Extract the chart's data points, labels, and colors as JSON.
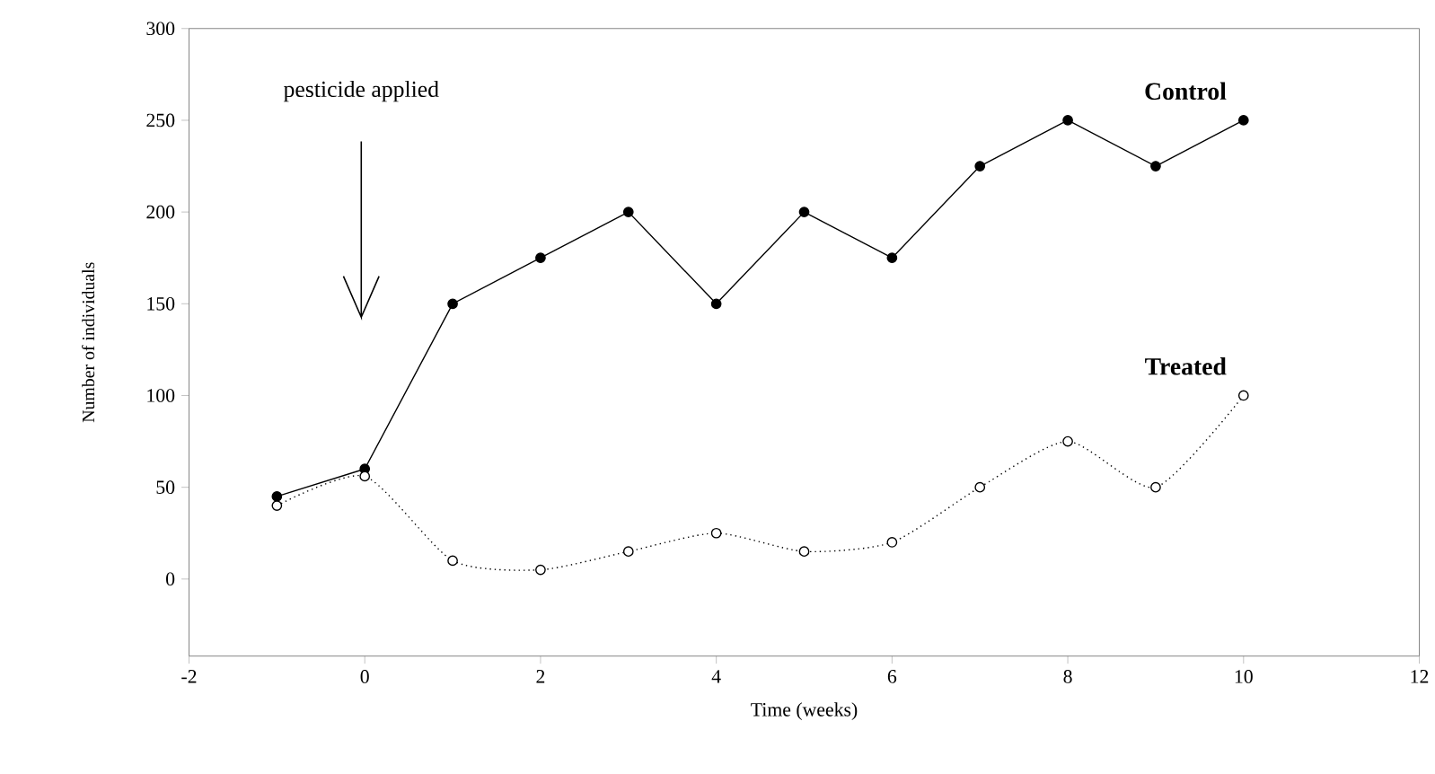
{
  "chart_data": {
    "type": "line",
    "xlabel": "Time (weeks)",
    "ylabel": "Number of individuals",
    "x": [
      -1,
      0,
      1,
      2,
      3,
      4,
      5,
      6,
      7,
      8,
      9,
      10
    ],
    "series": [
      {
        "name": "Control",
        "color": "#000000",
        "line_style": "solid",
        "values": [
          45,
          60,
          150,
          175,
          200,
          150,
          200,
          175,
          225,
          250,
          225,
          250
        ]
      },
      {
        "name": "Treated",
        "color": "#000000",
        "line_style": "dotted",
        "values": [
          40,
          56,
          10,
          5,
          15,
          25,
          15,
          20,
          50,
          75,
          50,
          100
        ]
      }
    ],
    "marker": "circle",
    "xlim": [
      -2,
      12
    ],
    "xticks": [
      -2,
      0,
      2,
      4,
      6,
      8,
      10,
      12
    ],
    "ylim": [
      -42,
      300
    ],
    "yticks": [
      0,
      50,
      100,
      150,
      200,
      250,
      300
    ],
    "annotations": [
      "pesticide applied"
    ]
  }
}
